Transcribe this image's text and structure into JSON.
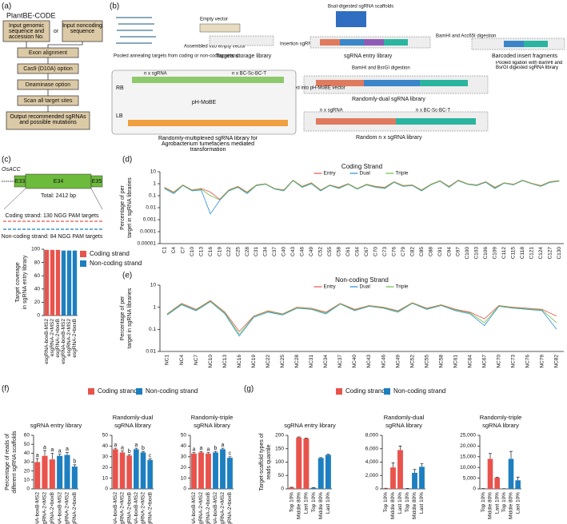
{
  "panel_labels": [
    "(a)",
    "(b)",
    "(c)",
    "(d)",
    "(e)",
    "(f)",
    "(g)"
  ],
  "flowchart": {
    "title": "PlantBE-CODE",
    "input_genomic": "Input genomic sequence and accession No.",
    "or": "or",
    "input_noncoding": "Input noncoding sequence",
    "steps": [
      "Exon alignment",
      "Cas9 (D10A) option",
      "Deaminase option",
      "Scan all target sites",
      "Output recommended sgRNAs and possible mutations"
    ]
  },
  "diagram": {
    "pooled": "Pooled annealing targets from coding or non-coding strand",
    "empty_vector": "Empty vector",
    "assembled_empty": "Assembled into empty vector",
    "storage": "Targets storage library",
    "scaffolds": "BsaI-digested sgRNA scaffolds",
    "insertion": "Insertion sgRNA scaffolds",
    "entry": "sgRNA entry library",
    "acc_digestion": "BamHI and Acc65I digestion",
    "barcoded": "Barcoded insert fragments",
    "pooled_ligation": "Pooled ligation with BamHI and BsrGI digested sgRNA library",
    "bsrgi_digestion": "BamHI and BsrGI digestion",
    "dual": "Randomly-dual sgRNA library",
    "assembled_mobe": "Assembled into pH-MoBE vector",
    "random_n": "Random n x sgRNA library",
    "mobe": "pH-MoBE",
    "nx_sgrna": "n x sgRNA",
    "nx_bc": "n x BC-Sc-BC-T",
    "multiplexed": "Randomly-multiplexed sgRNA library for Agrobacterium tumefaciens mediated transformation",
    "rb": "RB",
    "lb": "LB"
  },
  "gene": {
    "name": "OsACC",
    "exons": [
      "E33",
      "E34",
      "E35"
    ],
    "total": "Total: 2412 bp",
    "coding": "Coding strand: 130 NGG PAM targets",
    "noncoding": "Non-coding strand: 84 NGG PAM targets"
  },
  "chart_data": [
    {
      "type": "bar",
      "ylabel": [
        "Target coverage",
        "in sgRNA entry library"
      ],
      "categories": [
        "esgRNA-boxB-MS2",
        "esgRNA-2×MS2",
        "esgRNA-2×boxB",
        "esgRNA-boxB-MS2",
        "esgRNA-2×MS2",
        "esgRNA-2×boxB"
      ],
      "series": [
        {
          "name": "Coding strand",
          "color": "#e8534c",
          "values": [
            99,
            99,
            99,
            null,
            null,
            null
          ]
        },
        {
          "name": "Non-coding strand",
          "color": "#1d7fc0",
          "values": [
            null,
            null,
            null,
            98,
            98,
            98
          ]
        }
      ],
      "ylim": [
        0,
        100
      ],
      "yticks": [
        0,
        20,
        40,
        60,
        80,
        100
      ],
      "legend": "right"
    },
    {
      "type": "line",
      "title": "Coding Strand",
      "ylabel": [
        "Percentage of per",
        "target in sgRNA libraries"
      ],
      "log": true,
      "categories": [
        "C1",
        "C4",
        "C7",
        "C10",
        "C13",
        "C16",
        "C19",
        "C22",
        "C25",
        "C28",
        "C31",
        "C34",
        "C37",
        "C40",
        "C43",
        "C46",
        "C49",
        "C52",
        "C55",
        "C58",
        "C61",
        "C64",
        "C67",
        "C70",
        "C73",
        "C76",
        "C79",
        "C82",
        "C85",
        "C88",
        "C91",
        "C94",
        "C97",
        "C100",
        "C103",
        "C106",
        "C109",
        "C112",
        "C115",
        "C118",
        "C121",
        "C124",
        "C127",
        "C130"
      ],
      "series": [
        {
          "name": "Entry",
          "color": "#e8534c",
          "values": [
            0.5,
            0.2,
            0.8,
            0.3,
            0.4,
            0.2,
            0.05,
            0.3,
            0.6,
            0.2,
            0.8,
            1,
            0.4,
            0.3,
            2,
            0.6,
            1.2,
            0.3,
            0.8,
            0.5,
            1,
            0.4,
            0.9,
            0.6,
            0.5,
            1.5,
            0.7,
            0.8,
            0.3,
            0.9,
            1.8,
            0.6,
            2,
            1,
            0.8,
            1.5,
            0.5,
            1.2,
            0.9,
            2,
            1.1,
            0.7,
            1.5,
            1.8
          ]
        },
        {
          "name": "Dual",
          "color": "#2a8fd6",
          "values": [
            0.4,
            0.15,
            0.7,
            0.25,
            0.3,
            0.003,
            0.04,
            0.25,
            0.5,
            0.15,
            0.7,
            0.9,
            0.35,
            0.25,
            1.8,
            0.5,
            1,
            0.25,
            0.7,
            0.4,
            0.9,
            0.35,
            0.8,
            0.5,
            0.4,
            1.3,
            0.6,
            0.7,
            0.25,
            0.8,
            1.6,
            0.5,
            1.8,
            0.9,
            0.7,
            1.3,
            0.4,
            1.1,
            0.8,
            1.8,
            1,
            0.6,
            1.3,
            1.6
          ]
        },
        {
          "name": "Triple",
          "color": "#6bbd45",
          "values": [
            0.45,
            0.18,
            0.75,
            0.28,
            0.35,
            0.1,
            0.045,
            0.28,
            0.55,
            0.18,
            0.75,
            0.95,
            0.38,
            0.28,
            1.9,
            0.55,
            1.1,
            0.28,
            0.75,
            0.45,
            0.95,
            0.38,
            0.85,
            0.55,
            0.45,
            1.4,
            0.65,
            0.75,
            0.28,
            0.85,
            1.7,
            0.55,
            1.9,
            0.95,
            0.75,
            1.4,
            0.45,
            1.15,
            0.85,
            1.9,
            1.05,
            0.65,
            1.4,
            1.7
          ]
        }
      ],
      "ylim": [
        1e-05,
        10
      ],
      "yticks": [
        1e-05,
        0.0001,
        0.001,
        0.01,
        0.1,
        1,
        10
      ],
      "legend": "top"
    },
    {
      "type": "line",
      "title": "Non-coding Strand",
      "ylabel": [
        "Percentage of per",
        "target in sgRNA libraries"
      ],
      "log": true,
      "categories": [
        "NC1",
        "NC4",
        "NC7",
        "NC10",
        "NC13",
        "NC16",
        "NC19",
        "NC22",
        "NC25",
        "NC28",
        "NC31",
        "NC34",
        "NC37",
        "NC40",
        "NC43",
        "NC46",
        "NC49",
        "NC52",
        "NC55",
        "NC58",
        "NC61",
        "NC64",
        "NC67",
        "NC70",
        "NC73",
        "NC76",
        "NC79",
        "NC82"
      ],
      "series": [
        {
          "name": "Entry",
          "color": "#e8534c",
          "values": [
            0.5,
            1.5,
            0.8,
            2,
            0.6,
            0.08,
            0.4,
            0.7,
            0.5,
            1,
            0.9,
            0.6,
            1.5,
            0.8,
            1.2,
            1,
            0.7,
            1.6,
            0.9,
            1.3,
            0.8,
            0.6,
            0.3,
            1.2,
            1,
            0.9,
            0.8,
            0.4
          ]
        },
        {
          "name": "Dual",
          "color": "#2a8fd6",
          "values": [
            0.45,
            1.3,
            0.7,
            1.8,
            0.5,
            0.05,
            0.35,
            0.6,
            0.45,
            0.9,
            0.8,
            0.5,
            1.4,
            0.7,
            1.1,
            0.9,
            0.6,
            1.5,
            0.8,
            1.2,
            0.7,
            0.5,
            0.15,
            1.1,
            0.9,
            0.8,
            0.7,
            0.1
          ]
        },
        {
          "name": "Triple",
          "color": "#6bbd45",
          "values": [
            0.48,
            1.4,
            0.75,
            1.9,
            0.55,
            0.06,
            0.38,
            0.65,
            0.48,
            0.95,
            0.85,
            0.55,
            1.45,
            0.75,
            1.15,
            0.95,
            0.65,
            1.55,
            0.85,
            1.25,
            0.75,
            0.55,
            0.2,
            1.15,
            0.95,
            0.85,
            0.75,
            0.2
          ]
        }
      ],
      "ylim": [
        0.01,
        10
      ],
      "yticks": [
        0.01,
        0.1,
        1,
        10
      ],
      "legend": "top"
    },
    {
      "type": "bar",
      "title": [
        "sgRNA entry library"
      ],
      "ylabel": [
        "Percentage of reads of",
        "different sgRNA scaffolds"
      ],
      "categories": [
        "esgRNA-boxB-MS2",
        "esgRNA-2×MS2",
        "esgRNA-2×boxB",
        "esgRNA-boxB-MS2",
        "esgRNA-2×MS2",
        "esgRNA-2×boxB"
      ],
      "series": [
        {
          "name": "Coding strand",
          "color": "#e8534c",
          "values": [
            30,
            37,
            33,
            null,
            null,
            null
          ],
          "errors": [
            4,
            6,
            7,
            null,
            null,
            null
          ]
        },
        {
          "name": "Non-coding strand",
          "color": "#1d7fc0",
          "values": [
            null,
            null,
            null,
            37,
            38,
            25
          ],
          "errors": [
            null,
            null,
            null,
            2,
            3,
            2
          ]
        }
      ],
      "annotations": [
        "a",
        "a",
        "a",
        "a",
        "a",
        "b"
      ],
      "ylim": [
        0,
        60
      ],
      "yticks": [
        0,
        10,
        20,
        30,
        40,
        50,
        60
      ],
      "legend": "top"
    },
    {
      "type": "bar",
      "title": [
        "Randomly-dual",
        "sgRNA library"
      ],
      "categories": [
        "esgRNA-boxB-MS2",
        "esgRNA-2×MS2",
        "esgRNA-2×boxB",
        "esgRNA-boxB-MS2",
        "esgRNA-2×MS2",
        "esgRNA-2×boxB"
      ],
      "series": [
        {
          "name": "Coding strand",
          "color": "#e8534c",
          "values": [
            37,
            34,
            31,
            null,
            null,
            null
          ],
          "errors": [
            1,
            1.5,
            1,
            null,
            null,
            null
          ]
        },
        {
          "name": "Non-coding strand",
          "color": "#1d7fc0",
          "values": [
            null,
            null,
            null,
            37,
            34,
            27
          ],
          "errors": [
            null,
            null,
            null,
            1,
            1,
            1
          ]
        }
      ],
      "annotations": [
        "a",
        "a",
        "b",
        "a",
        "b",
        "c"
      ],
      "ylim": [
        0,
        50
      ],
      "yticks": [
        0,
        10,
        20,
        30,
        40,
        50
      ]
    },
    {
      "type": "bar",
      "title": [
        "Randomly-triple",
        "sgRNA library"
      ],
      "categories": [
        "esgRNA-boxB-MS2",
        "esgRNA-2×MS2",
        "esgRNA-2×boxB",
        "esgRNA-boxB-MS2",
        "esgRNA-2×MS2",
        "esgRNA-2×boxB"
      ],
      "series": [
        {
          "name": "Coding strand",
          "color": "#e8534c",
          "values": [
            33,
            34,
            33,
            null,
            null,
            null
          ],
          "errors": [
            1,
            1,
            1,
            null,
            null,
            null
          ]
        },
        {
          "name": "Non-coding strand",
          "color": "#1d7fc0",
          "values": [
            null,
            null,
            null,
            34,
            37,
            29
          ],
          "errors": [
            null,
            null,
            null,
            1,
            1,
            1
          ]
        }
      ],
      "annotations": [
        "a",
        "a",
        "a",
        "b",
        "a",
        "c"
      ],
      "ylim": [
        0,
        50
      ],
      "yticks": [
        0,
        10,
        20,
        30,
        40,
        50
      ]
    },
    {
      "type": "bar",
      "title": [
        "sgRNA entry library"
      ],
      "ylabel": [
        "Target-scaffold types of",
        "reads quantile"
      ],
      "categories": [
        "Top 10%",
        "Middle 80%",
        "Last 10%",
        "Top 10%",
        "Middle 80%",
        "Last 10%"
      ],
      "series": [
        {
          "name": "Coding strand",
          "color": "#e8534c",
          "values": [
            5,
            192,
            188,
            null,
            null,
            null
          ],
          "errors": [
            1,
            2,
            2,
            null,
            null,
            null
          ]
        },
        {
          "name": "Non-coding strand",
          "color": "#1d7fc0",
          "values": [
            null,
            null,
            null,
            4,
            115,
            127
          ],
          "errors": [
            null,
            null,
            null,
            1,
            2,
            2
          ]
        }
      ],
      "ylim": [
        0,
        200
      ],
      "yticks": [
        0,
        50,
        100,
        150,
        200
      ],
      "legend": "top"
    },
    {
      "type": "bar",
      "title": [
        "Randomly-dual",
        "sgRNA library"
      ],
      "categories": [
        "Top 10%",
        "Middle 80%",
        "Last 10%",
        "Top 10%",
        "Middle 80%",
        "Last 10%"
      ],
      "series": [
        {
          "name": "Coding strand",
          "color": "#e8534c",
          "values": [
            80,
            3200,
            5800,
            null,
            null,
            null
          ],
          "errors": [
            20,
            700,
            600,
            null,
            null,
            null
          ]
        },
        {
          "name": "Non-coding strand",
          "color": "#1d7fc0",
          "values": [
            null,
            null,
            null,
            60,
            2400,
            3300
          ],
          "errors": [
            null,
            null,
            null,
            20,
            500,
            500
          ]
        }
      ],
      "ylim": [
        0,
        8000
      ],
      "yticks": [
        0,
        {
          "value": 2000,
          "label": "2,000"
        },
        {
          "value": 4000,
          "label": "4,000"
        },
        {
          "value": 6000,
          "label": "6,000"
        },
        {
          "value": 8000,
          "label": "8,000"
        }
      ]
    },
    {
      "type": "bar",
      "title": [
        "Randomly-triple",
        "sgRNA library"
      ],
      "categories": [
        "Top 10%",
        "Middle 80%",
        "Last 10%",
        "Top 10%",
        "Middle 80%",
        "Last 10%"
      ],
      "series": [
        {
          "name": "Coding strand",
          "color": "#e8534c",
          "values": [
            100,
            14000,
            5200,
            null,
            null,
            null
          ],
          "errors": [
            30,
            2500,
            200,
            null,
            null,
            null
          ]
        },
        {
          "name": "Non-coding strand",
          "color": "#1d7fc0",
          "values": [
            null,
            null,
            null,
            80,
            14000,
            4000
          ],
          "errors": [
            null,
            null,
            null,
            30,
            3500,
            1500
          ]
        }
      ],
      "ylim": [
        0,
        25000
      ],
      "yticks": [
        0,
        {
          "value": 5000,
          "label": "5,000"
        },
        {
          "value": 10000,
          "label": "10,000"
        },
        {
          "value": 15000,
          "label": "15,000"
        },
        {
          "value": 20000,
          "label": "20,000"
        },
        {
          "value": 25000,
          "label": "25,000"
        }
      ]
    }
  ]
}
